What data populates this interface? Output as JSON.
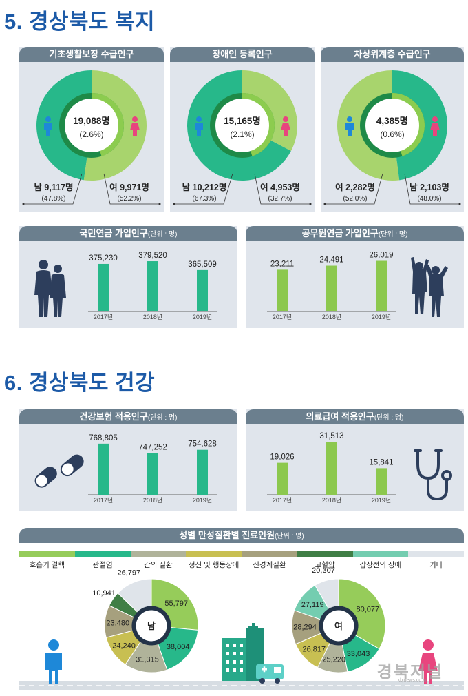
{
  "sections": {
    "welfare_title": "5. 경상북도 복지",
    "health_title": "6. 경상북도 건강"
  },
  "colors": {
    "male_green": "#27b88a",
    "female_green": "#a8d46d",
    "dark_ring": "#1e8a48",
    "ring_accent": "#8ccc4f",
    "header_gray": "#6b7f8e",
    "panel_bg": "#e0e5ec",
    "male_icon": "#1e88d8",
    "female_icon": "#e8457e"
  },
  "chart_data": [
    {
      "type": "pie",
      "title": "기초생활보장 수급인구",
      "total": "19,088명",
      "total_pct": "(2.6%)",
      "series": [
        {
          "name": "남",
          "value": 9117,
          "label": "남 9,117명",
          "pct": "(47.8%)"
        },
        {
          "name": "여",
          "value": 9971,
          "label": "여 9,971명",
          "pct": "(52.2%)"
        }
      ]
    },
    {
      "type": "pie",
      "title": "장애인 등록인구",
      "total": "15,165명",
      "total_pct": "(2.1%)",
      "series": [
        {
          "name": "남",
          "value": 10212,
          "label": "남 10,212명",
          "pct": "(67.3%)"
        },
        {
          "name": "여",
          "value": 4953,
          "label": "여 4,953명",
          "pct": "(32.7%)"
        }
      ]
    },
    {
      "type": "pie",
      "title": "차상위계층 수급인구",
      "total": "4,385명",
      "total_pct": "(0.6%)",
      "series": [
        {
          "name": "여",
          "value": 2282,
          "label": "여 2,282명",
          "pct": "(52.0%)"
        },
        {
          "name": "남",
          "value": 2103,
          "label": "남 2,103명",
          "pct": "(48.0%)"
        }
      ]
    },
    {
      "type": "bar",
      "title": "국민연금 가입인구",
      "unit": "(단위 : 명)",
      "categories": [
        "2017년",
        "2018년",
        "2019년"
      ],
      "values": [
        375230,
        379520,
        365509
      ],
      "value_labels": [
        "375,230",
        "379,520",
        "365,509"
      ],
      "ylim": [
        300000,
        385000
      ]
    },
    {
      "type": "bar",
      "title": "공무원연금 가입인구",
      "unit": "(단위 : 명)",
      "categories": [
        "2017년",
        "2018년",
        "2019년"
      ],
      "values": [
        23211,
        24491,
        26019
      ],
      "value_labels": [
        "23,211",
        "24,491",
        "26,019"
      ],
      "ylim": [
        10000,
        27000
      ]
    },
    {
      "type": "bar",
      "title": "건강보험 적용인구",
      "unit": "(단위 : 명)",
      "categories": [
        "2017년",
        "2018년",
        "2019년"
      ],
      "values": [
        768805,
        747252,
        754628
      ],
      "value_labels": [
        "768,805",
        "747,252",
        "754,628"
      ],
      "ylim": [
        650000,
        775000
      ]
    },
    {
      "type": "bar",
      "title": "의료급여 적용인구",
      "unit": "(단위 : 명)",
      "categories": [
        "2017년",
        "2018년",
        "2019년"
      ],
      "values": [
        19026,
        31513,
        15841
      ],
      "value_labels": [
        "19,026",
        "31,513",
        "15,841"
      ],
      "ylim": [
        0,
        32000
      ]
    },
    {
      "type": "pie",
      "title": "성별 만성질환별 진료인원",
      "unit": "(단위 : 명)",
      "categories": [
        "호흡기 결핵",
        "관절염",
        "간의 질환",
        "정신 및 행동장애",
        "신경계질환",
        "고혈압",
        "갑상선의 장애",
        "기타"
      ],
      "category_colors": [
        "#96cc5a",
        "#27b88a",
        "#b0b39a",
        "#c8bf52",
        "#a6a07e",
        "#3f7e45",
        "#74cdb0",
        "#dfe4ea"
      ],
      "series": [
        {
          "name": "남",
          "values": [
            55797,
            38004,
            31315,
            24240,
            23480,
            10941,
            0,
            26797
          ],
          "labels": [
            "55,797",
            "38,004",
            "31,315",
            "24,240",
            "23,480",
            "10,941",
            "",
            "26,797"
          ]
        },
        {
          "name": "여",
          "values": [
            80077,
            33043,
            25220,
            26817,
            28294,
            0,
            27119,
            20307
          ],
          "labels": [
            "80,077",
            "33,043",
            "25,220",
            "26,817",
            "28,294",
            "",
            "27,119",
            "20,307"
          ]
        }
      ]
    }
  ],
  "watermark": {
    "main": "경북저널",
    "sub": "kbjnews.co.kr"
  }
}
